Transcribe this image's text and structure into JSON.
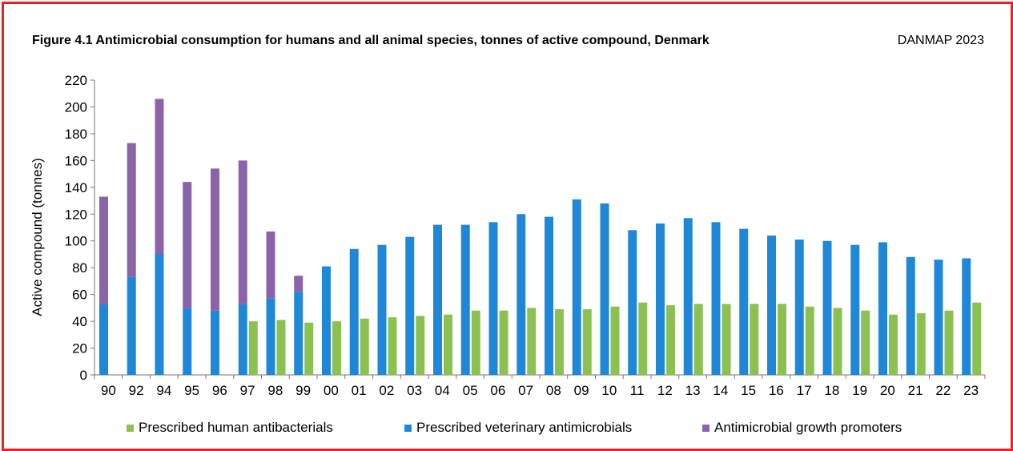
{
  "title": "Figure 4.1 Antimicrobial consumption for humans and all animal species, tonnes of active compound, Denmark",
  "source": "DANMAP 2023",
  "chart_data": {
    "type": "bar",
    "ylabel": "Active compound (tonnes)",
    "xlabel": "",
    "ylim": [
      0,
      220
    ],
    "yticks": [
      0,
      20,
      40,
      60,
      80,
      100,
      120,
      140,
      160,
      180,
      200,
      220
    ],
    "grid": false,
    "legend_position": "bottom",
    "categories": [
      "90",
      "92",
      "94",
      "95",
      "96",
      "97",
      "98",
      "99",
      "00",
      "01",
      "02",
      "03",
      "04",
      "05",
      "06",
      "07",
      "08",
      "09",
      "10",
      "11",
      "12",
      "13",
      "14",
      "15",
      "16",
      "17",
      "18",
      "19",
      "20",
      "21",
      "22",
      "23"
    ],
    "series": [
      {
        "name": "Prescribed human antibacterials",
        "color": "#8cc152",
        "values": [
          null,
          null,
          null,
          null,
          null,
          40,
          41,
          39,
          40,
          42,
          43,
          44,
          45,
          48,
          48,
          50,
          49,
          49,
          51,
          54,
          52,
          53,
          53,
          53,
          53,
          51,
          50,
          48,
          45,
          46,
          48,
          54
        ]
      },
      {
        "name": "Prescribed veterinary antimicrobials",
        "color": "#1f87d8",
        "values": [
          53,
          73,
          90,
          50,
          48,
          53,
          57,
          62,
          81,
          94,
          97,
          103,
          112,
          112,
          114,
          120,
          118,
          131,
          128,
          108,
          113,
          117,
          114,
          109,
          104,
          101,
          100,
          97,
          99,
          88,
          86,
          87
        ]
      },
      {
        "name": "Antimicrobial growth promoters",
        "color": "#8a63a8",
        "values": [
          80,
          100,
          116,
          94,
          106,
          107,
          50,
          12,
          null,
          null,
          null,
          null,
          null,
          null,
          null,
          null,
          null,
          null,
          null,
          null,
          null,
          null,
          null,
          null,
          null,
          null,
          null,
          null,
          null,
          null,
          null,
          null
        ]
      }
    ]
  }
}
